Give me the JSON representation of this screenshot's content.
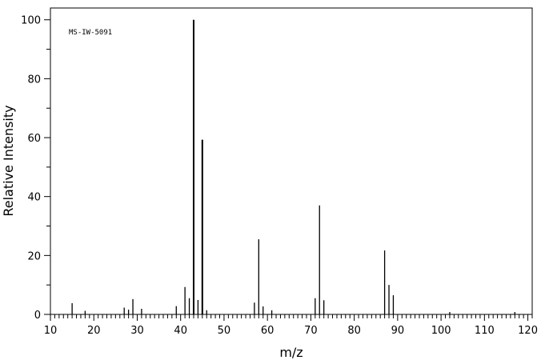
{
  "chart_data": {
    "type": "bar",
    "title": "",
    "xlabel": "m/z",
    "ylabel": "Relative Intensity",
    "annotation": "MS-IW-5091",
    "xlim": [
      10,
      121
    ],
    "ylim": [
      0,
      104
    ],
    "x_ticks": [
      10,
      20,
      30,
      40,
      50,
      60,
      70,
      80,
      90,
      100,
      110,
      120
    ],
    "y_ticks": [
      0,
      20,
      40,
      60,
      80,
      100
    ],
    "grid": false,
    "legend": "none",
    "peaks": [
      {
        "mz": 15,
        "intensity": 3.8
      },
      {
        "mz": 18,
        "intensity": 1.2
      },
      {
        "mz": 27,
        "intensity": 2.3
      },
      {
        "mz": 28,
        "intensity": 1.6
      },
      {
        "mz": 29,
        "intensity": 5.2
      },
      {
        "mz": 31,
        "intensity": 1.9
      },
      {
        "mz": 39,
        "intensity": 2.8
      },
      {
        "mz": 41,
        "intensity": 9.3
      },
      {
        "mz": 42,
        "intensity": 5.5
      },
      {
        "mz": 43,
        "intensity": 100
      },
      {
        "mz": 44,
        "intensity": 4.9
      },
      {
        "mz": 45,
        "intensity": 59.3
      },
      {
        "mz": 46,
        "intensity": 1.4
      },
      {
        "mz": 57,
        "intensity": 4.0
      },
      {
        "mz": 58,
        "intensity": 25.5
      },
      {
        "mz": 59,
        "intensity": 2.7
      },
      {
        "mz": 61,
        "intensity": 1.4
      },
      {
        "mz": 71,
        "intensity": 5.5
      },
      {
        "mz": 72,
        "intensity": 37.0
      },
      {
        "mz": 73,
        "intensity": 4.8
      },
      {
        "mz": 87,
        "intensity": 21.7
      },
      {
        "mz": 88,
        "intensity": 10.0
      },
      {
        "mz": 89,
        "intensity": 6.5
      },
      {
        "mz": 102,
        "intensity": 0.8
      },
      {
        "mz": 117,
        "intensity": 0.8
      }
    ]
  }
}
